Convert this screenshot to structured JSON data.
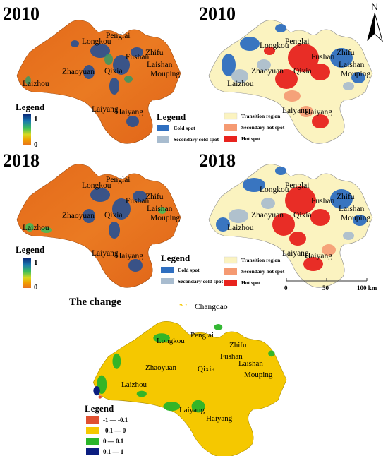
{
  "panels": {
    "p2010_index": {
      "year": "2010"
    },
    "p2010_hotspot": {
      "year": "2010"
    },
    "p2018_index": {
      "year": "2018"
    },
    "p2018_hotspot": {
      "year": "2018"
    },
    "change": {
      "title": "The change",
      "island_label": "Changdao"
    }
  },
  "cities": {
    "penglai": "Penglai",
    "longkou": "Longkou",
    "fushan": "Fushan",
    "zhifu": "Zhifu",
    "zhaoyuan": "Zhaoyuan",
    "qixia": "Qixia",
    "laishan": "Laishan",
    "mouping": "Mouping",
    "laizhou": "Laizhou",
    "laiyang": "Laiyang",
    "haiyang": "Haiyang"
  },
  "index_legend": {
    "title": "Legend",
    "max_label": "1",
    "min_label": "0",
    "ramp_colors": [
      "#0a2a7a",
      "#1a7ab0",
      "#3fbf5a",
      "#d8d820",
      "#f0a000",
      "#e87020"
    ]
  },
  "hotspot_legend": {
    "title": "Legend",
    "items": [
      {
        "label": "Cold spot",
        "color": "#2f6fc0"
      },
      {
        "label": "Secondary cold spot",
        "color": "#a8bccf"
      },
      {
        "label": "Transition region",
        "color": "#fbf3c0"
      },
      {
        "label": "Secondary hot spot",
        "color": "#f59a72"
      },
      {
        "label": "Hot spot",
        "color": "#e8231e"
      }
    ]
  },
  "change_legend": {
    "title": "Legend",
    "items": [
      {
        "label": "-1 — -0.1",
        "color": "#e05030"
      },
      {
        "label": "-0.1 — 0",
        "color": "#f5c800"
      },
      {
        "label": "0 — 0.1",
        "color": "#2ab52a"
      },
      {
        "label": "0.1 — 1",
        "color": "#0c1e80"
      }
    ]
  },
  "scale_bar": {
    "labels": [
      "0",
      "50",
      "100 km"
    ]
  },
  "north_arrow": {
    "label": "N"
  }
}
